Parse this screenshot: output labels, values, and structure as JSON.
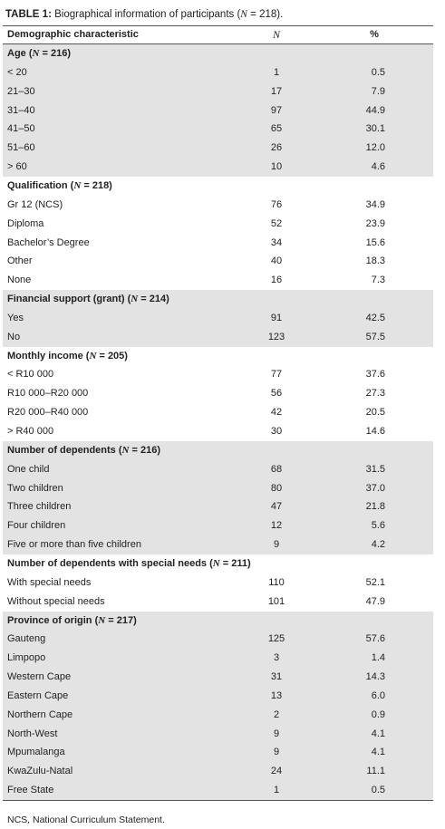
{
  "title": {
    "label": "TABLE 1:",
    "text": [
      "Biographical information of participants (",
      "N",
      " = 218)."
    ]
  },
  "table": {
    "header": [
      "Demographic characteristic",
      "N",
      "%"
    ],
    "sections": [
      {
        "heading": [
          "Age (",
          "N",
          " = 216)"
        ],
        "rows": [
          [
            "< 20",
            "1",
            "0.5"
          ],
          [
            "21–30",
            "17",
            "7.9"
          ],
          [
            "31–40",
            "97",
            "44.9"
          ],
          [
            "41–50",
            "65",
            "30.1"
          ],
          [
            "51–60",
            "26",
            "12.0"
          ],
          [
            "> 60",
            "10",
            "4.6"
          ]
        ]
      },
      {
        "heading": [
          "Qualification (",
          "N",
          " = 218)"
        ],
        "rows": [
          [
            "Gr 12 (NCS)",
            "76",
            "34.9"
          ],
          [
            "Diploma",
            "52",
            "23.9"
          ],
          [
            "Bachelor’s Degree",
            "34",
            "15.6"
          ],
          [
            "Other",
            "40",
            "18.3"
          ],
          [
            "None",
            "16",
            "7.3"
          ]
        ]
      },
      {
        "heading": [
          "Financial support (grant) (",
          "N",
          " = 214)"
        ],
        "rows": [
          [
            "Yes",
            "91",
            "42.5"
          ],
          [
            "No",
            "123",
            "57.5"
          ]
        ]
      },
      {
        "heading": [
          "Monthly income (",
          "N",
          " = 205)"
        ],
        "rows": [
          [
            "< R10 000",
            "77",
            "37.6"
          ],
          [
            "R10 000–R20 000",
            "56",
            "27.3"
          ],
          [
            "R20 000–R40 000",
            "42",
            "20.5"
          ],
          [
            "> R40 000",
            "30",
            "14.6"
          ]
        ]
      },
      {
        "heading": [
          "Number of dependents (",
          "N",
          " = 216)"
        ],
        "rows": [
          [
            "One child",
            "68",
            "31.5"
          ],
          [
            "Two children",
            "80",
            "37.0"
          ],
          [
            "Three children",
            "47",
            "21.8"
          ],
          [
            "Four children",
            "12",
            "5.6"
          ],
          [
            "Five or more than five children",
            "9",
            "4.2"
          ]
        ]
      },
      {
        "heading": [
          "Number of dependents with special needs (",
          "N",
          " = 211)"
        ],
        "rows": [
          [
            "With special needs",
            "110",
            "52.1"
          ],
          [
            "Without special needs",
            "101",
            "47.9"
          ]
        ]
      },
      {
        "heading": [
          "Province of origin (",
          "N",
          " = 217)"
        ],
        "rows": [
          [
            "Gauteng",
            "125",
            "57.6"
          ],
          [
            "Limpopo",
            "3",
            "1.4"
          ],
          [
            "Western Cape",
            "31",
            "14.3"
          ],
          [
            "Eastern Cape",
            "13",
            "6.0"
          ],
          [
            "Northern Cape",
            "2",
            "0.9"
          ],
          [
            "North-West",
            "9",
            "4.1"
          ],
          [
            "Mpumalanga",
            "9",
            "4.1"
          ],
          [
            "KwaZulu-Natal",
            "24",
            "11.1"
          ],
          [
            "Free State",
            "1",
            "0.5"
          ]
        ]
      }
    ]
  },
  "footnote": "NCS, National Curriculum Statement."
}
